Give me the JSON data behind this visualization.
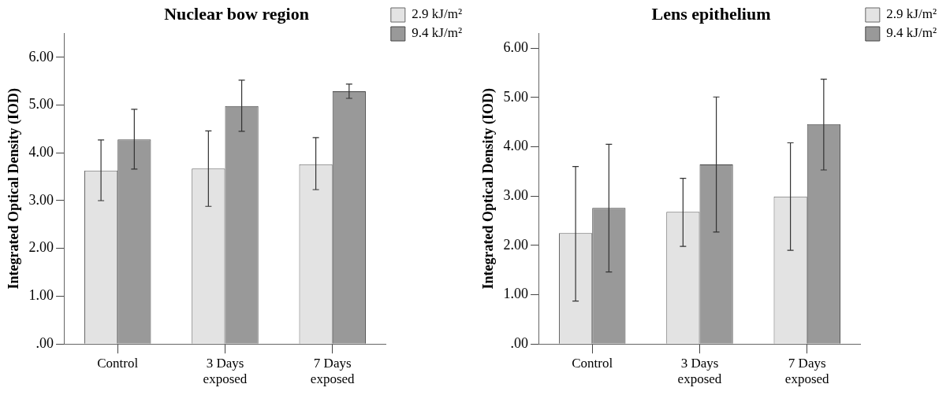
{
  "chart_data": [
    {
      "type": "bar",
      "title": "Nuclear bow region",
      "ylabel": "Integrated Optical Density (IOD)",
      "categories": [
        "Control",
        "3 Days exposed",
        "7 Days exposed"
      ],
      "series": [
        {
          "name": "2.9 kJ/m²",
          "color": "#e3e3e3",
          "values": [
            3.63,
            3.67,
            3.76
          ],
          "errors": [
            [
              3.0,
              4.27
            ],
            [
              2.88,
              4.46
            ],
            [
              3.23,
              4.32
            ]
          ]
        },
        {
          "name": "9.4 kJ/m²",
          "color": "#999999",
          "values": [
            4.28,
            4.98,
            5.29
          ],
          "errors": [
            [
              3.66,
              4.91
            ],
            [
              4.45,
              5.52
            ],
            [
              5.14,
              5.44
            ]
          ]
        }
      ],
      "ylim": [
        0,
        6.5
      ],
      "yticks": [
        {
          "value": 0,
          "label": ".00"
        },
        {
          "value": 1,
          "label": "1.00"
        },
        {
          "value": 2,
          "label": "2.00"
        },
        {
          "value": 3,
          "label": "3.00"
        },
        {
          "value": 4,
          "label": "4.00"
        },
        {
          "value": 5,
          "label": "5.00"
        },
        {
          "value": 6,
          "label": "6.00"
        }
      ],
      "grid": false,
      "legend": "top right"
    },
    {
      "type": "bar",
      "title": "Lens epithelium",
      "ylabel": "Integrated Optical Density (IOD)",
      "categories": [
        "Control",
        "3 Days exposed",
        "7 Days exposed"
      ],
      "series": [
        {
          "name": "2.9 kJ/m²",
          "color": "#e3e3e3",
          "values": [
            2.25,
            2.68,
            2.99
          ],
          "errors": [
            [
              0.87,
              3.6
            ],
            [
              1.98,
              3.36
            ],
            [
              1.9,
              4.08
            ]
          ]
        },
        {
          "name": "9.4 kJ/m²",
          "color": "#999999",
          "values": [
            2.76,
            3.64,
            4.46
          ],
          "errors": [
            [
              1.46,
              4.05
            ],
            [
              2.27,
              5.01
            ],
            [
              3.53,
              5.37
            ]
          ]
        }
      ],
      "ylim": [
        0,
        6.3
      ],
      "yticks": [
        {
          "value": 0,
          "label": ".00"
        },
        {
          "value": 1,
          "label": "1.00"
        },
        {
          "value": 2,
          "label": "2.00"
        },
        {
          "value": 3,
          "label": "3.00"
        },
        {
          "value": 4,
          "label": "4.00"
        },
        {
          "value": 5,
          "label": "5.00"
        },
        {
          "value": 6,
          "label": "6.00"
        }
      ],
      "grid": false,
      "legend": "top right"
    }
  ]
}
